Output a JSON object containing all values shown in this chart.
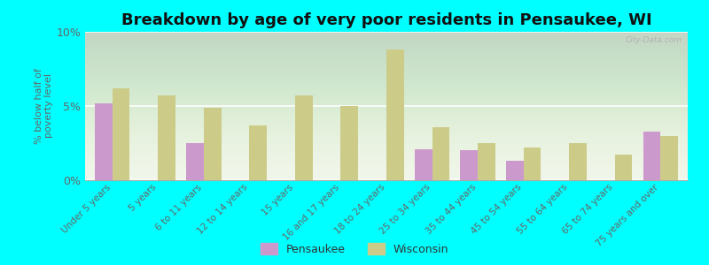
{
  "title": "Breakdown by age of very poor residents in Pensaukee, WI",
  "ylabel": "% below half of\npoverty level",
  "categories": [
    "Under 5 years",
    "5 years",
    "6 to 11 years",
    "12 to 14 years",
    "15 years",
    "16 and 17 years",
    "18 to 24 years",
    "25 to 34 years",
    "35 to 44 years",
    "45 to 54 years",
    "55 to 64 years",
    "65 to 74 years",
    "75 years and over"
  ],
  "pensaukee": [
    5.2,
    0,
    2.5,
    0,
    0,
    0,
    0,
    2.1,
    2.0,
    1.3,
    0,
    0,
    3.3
  ],
  "wisconsin": [
    6.2,
    5.7,
    4.9,
    3.7,
    5.7,
    5.0,
    8.8,
    3.6,
    2.5,
    2.2,
    2.5,
    1.7,
    3.0
  ],
  "pensaukee_color": "#cc99cc",
  "wisconsin_color": "#cccc88",
  "background_color": "#00ffff",
  "ylim": [
    0,
    10
  ],
  "yticks": [
    0,
    5,
    10
  ],
  "ytick_labels": [
    "0%",
    "5%",
    "10%"
  ],
  "title_fontsize": 13,
  "label_fontsize": 7.5,
  "bar_width": 0.38
}
